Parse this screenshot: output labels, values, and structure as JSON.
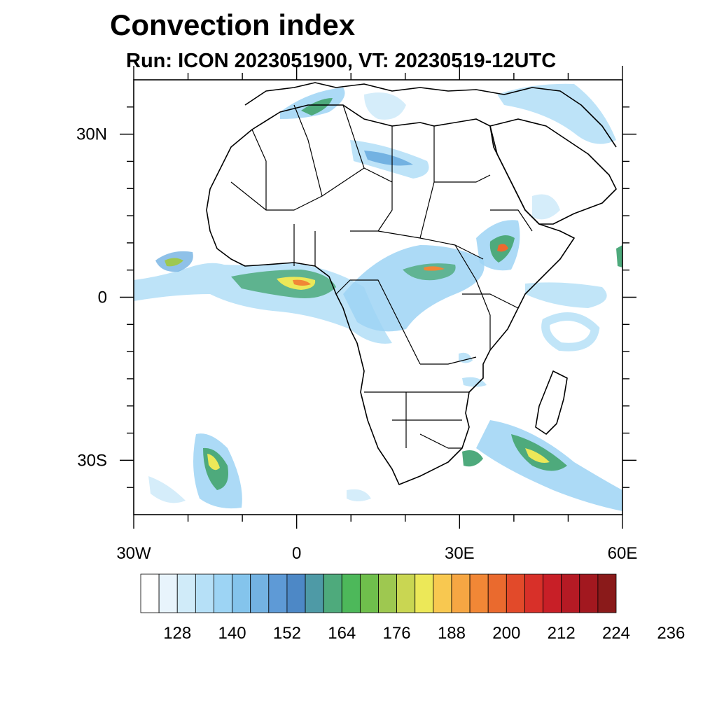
{
  "title": "Convection index",
  "subtitle": "Run: ICON 2023051900,  VT: 20230519-12UTC",
  "map": {
    "extent": {
      "lon": [
        -30,
        60
      ],
      "lat": [
        -40,
        40
      ]
    },
    "lat_ticks": [
      {
        "value": 30,
        "label": "30N"
      },
      {
        "value": 0,
        "label": "0"
      },
      {
        "value": -30,
        "label": "30S"
      }
    ],
    "lon_ticks": [
      {
        "value": -30,
        "label": "30W"
      },
      {
        "value": 0,
        "label": "0"
      },
      {
        "value": 30,
        "label": "30E"
      },
      {
        "value": 60,
        "label": "60E"
      }
    ],
    "minor_lat": [
      35,
      25,
      20,
      15,
      10,
      5,
      -5,
      -10,
      -15,
      -20,
      -25,
      -35
    ],
    "minor_lon": [
      -20,
      -10,
      10,
      20,
      40,
      50
    ]
  },
  "colorbar": {
    "colors": [
      "#ffffff",
      "#e8f4fc",
      "#d0ebf9",
      "#b6e0f7",
      "#9dd4f4",
      "#84c4ec",
      "#73b2e2",
      "#5e9ad6",
      "#4d88c6",
      "#4e9aa6",
      "#4eaa7c",
      "#4db85a",
      "#6fbf4c",
      "#9ec850",
      "#c9d652",
      "#ece858",
      "#f8c850",
      "#f6a643",
      "#f18736",
      "#ea6a2e",
      "#e24a2a",
      "#d83029",
      "#c81f27",
      "#b51a24",
      "#a2181f",
      "#8a1a1a"
    ],
    "labels": [
      "128",
      "140",
      "152",
      "164",
      "176",
      "188",
      "200",
      "212",
      "224",
      "236"
    ]
  }
}
